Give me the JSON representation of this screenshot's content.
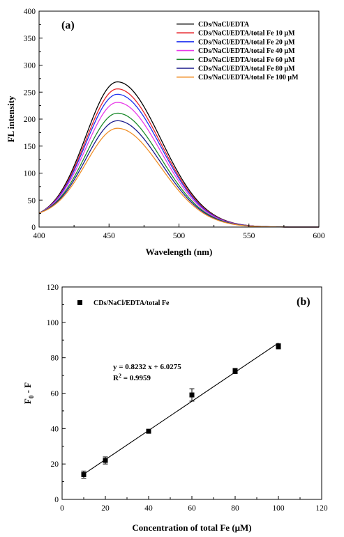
{
  "chart_data": [
    {
      "type": "line",
      "panel_label": "(a)",
      "xlabel": "Wavelength (nm)",
      "ylabel": "FL intensity",
      "xlim": [
        400,
        600
      ],
      "ylim": [
        0,
        400
      ],
      "xticks": [
        400,
        450,
        500,
        550,
        600
      ],
      "yticks": [
        0,
        50,
        100,
        150,
        200,
        250,
        300,
        350,
        400
      ],
      "grid": false,
      "legend_position": "top-right",
      "peak_x": 456,
      "series": [
        {
          "name": "CDs/NaCl/EDTA",
          "color": "#000000",
          "peak": 269
        },
        {
          "name": "CDs/NaCl/EDTA/total Fe 10 μM",
          "color": "#e8242a",
          "peak": 256
        },
        {
          "name": "CDs/NaCl/EDTA/total Fe 20 μM",
          "color": "#1c2ff0",
          "peak": 246
        },
        {
          "name": "CDs/NaCl/EDTA/total Fe 40 μM",
          "color": "#e83ae8",
          "peak": 231
        },
        {
          "name": "CDs/NaCl/EDTA/total Fe 60 μM",
          "color": "#1a8a2a",
          "peak": 211
        },
        {
          "name": "CDs/NaCl/EDTA/total Fe 80 μM",
          "color": "#1a1a8c",
          "peak": 197
        },
        {
          "name": "CDs/NaCl/EDTA/total Fe 100 μM",
          "color": "#f0902a",
          "peak": 183
        }
      ]
    },
    {
      "type": "scatter",
      "panel_label": "(b)",
      "xlabel": "Concentration of total Fe (μM)",
      "ylabel_main": "F",
      "ylabel_sub": "0",
      "ylabel_rest": " - F",
      "xlim": [
        0,
        120
      ],
      "ylim": [
        0,
        120
      ],
      "xticks": [
        0,
        20,
        40,
        60,
        80,
        100,
        120
      ],
      "yticks": [
        0,
        20,
        40,
        60,
        80,
        100,
        120
      ],
      "grid": false,
      "legend_position": "top-left",
      "series": [
        {
          "name": "CDs/NaCl/EDTA/total Fe",
          "color": "#000000",
          "x": [
            10,
            20,
            40,
            60,
            80,
            100
          ],
          "y": [
            14,
            22,
            38.5,
            59,
            72.5,
            86.5
          ],
          "yerr": [
            2,
            2,
            1,
            3.5,
            1.5,
            1.5
          ]
        }
      ],
      "fit": {
        "slope": 0.8232,
        "intercept": 6.0275,
        "x_range": [
          10,
          100
        ],
        "equation": "y = 0.8232 x + 6.0275",
        "r2_main": "R",
        "r2_sup": "2",
        "r2_rest": " = 0.9959"
      }
    }
  ]
}
